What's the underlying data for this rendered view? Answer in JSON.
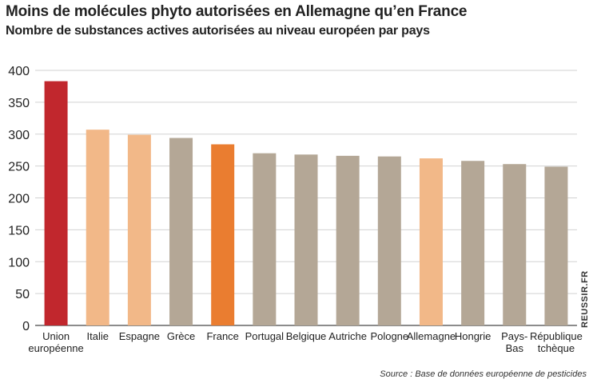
{
  "chart_data": {
    "type": "bar",
    "title": "Moins de molécules phyto autorisées en Allemagne qu’en France",
    "subtitle": "Nombre de substances actives autorisées au niveau européen par pays",
    "xlabel": "",
    "ylabel": "",
    "ylim": [
      0,
      400
    ],
    "yticks": [
      0,
      50,
      100,
      150,
      200,
      250,
      300,
      350,
      400
    ],
    "grid": true,
    "categories": [
      [
        "Union",
        "européenne"
      ],
      [
        "Italie"
      ],
      [
        "Espagne"
      ],
      [
        "Grèce"
      ],
      [
        "France"
      ],
      [
        "Portugal"
      ],
      [
        "Belgique"
      ],
      [
        "Autriche"
      ],
      [
        "Pologne"
      ],
      [
        "Allemagne"
      ],
      [
        "Hongrie"
      ],
      [
        "Pays-",
        "Bas"
      ],
      [
        "République",
        "tchèque"
      ]
    ],
    "values": [
      383,
      307,
      299,
      294,
      284,
      270,
      268,
      266,
      265,
      262,
      258,
      253,
      249
    ],
    "colors": [
      "#c1272d",
      "#f2b888",
      "#f2b888",
      "#b4a796",
      "#ea7d30",
      "#b4a796",
      "#b4a796",
      "#b4a796",
      "#b4a796",
      "#f2b888",
      "#b4a796",
      "#b4a796",
      "#b4a796"
    ],
    "source": "Source : Base de données européenne de pesticides",
    "credit": "REUSSIR.FR"
  }
}
